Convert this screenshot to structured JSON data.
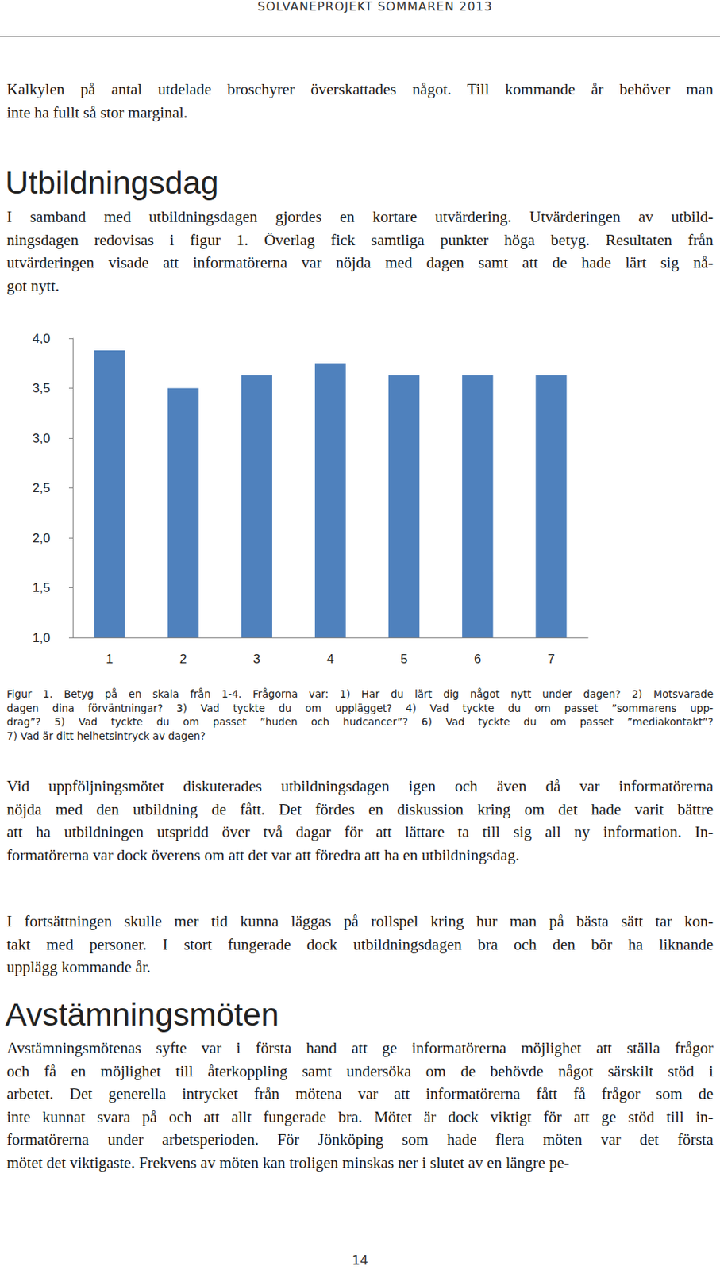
{
  "header": "SOLVANEPROJEKT SOMMAREN 2013",
  "blocks": [
    {
      "type": "paragraph",
      "lines": [
        "Kalkylen på antal utdelade broschyrer överskattades något. Till kommande år behöver man",
        "inte ha fullt så stor marginal."
      ]
    },
    {
      "type": "heading",
      "text": "Utbildningsdag"
    },
    {
      "type": "paragraph",
      "lines": [
        "I samband med utbildningsdagen gjordes en kortare utvärdering. Utvärderingen av utbild-",
        "ningsdagen redovisas i figur 1. Överlag fick samtliga punkter höga betyg. Resultaten från",
        "utvärderingen visade att informatörerna var nöjda med dagen samt att de hade lärt sig nå-",
        "got nytt."
      ]
    },
    {
      "type": "caption",
      "lines": [
        "Figur 1. Betyg på en skala från 1-4. Frågorna var: 1) Har du lärt dig något nytt under dagen? 2) Motsvarade",
        "dagen dina förväntningar? 3) Vad tyckte du om upplägget? 4) Vad tyckte du om passet ”sommarens upp-",
        "drag”? 5) Vad tyckte du om passet ”huden och hudcancer”? 6) Vad tyckte du om passet ”mediakontakt”?",
        "7) Vad är ditt helhetsintryck av dagen?"
      ]
    },
    {
      "type": "paragraph",
      "lines": [
        "Vid uppföljningsmötet diskuterades utbildningsdagen igen och även då var informatörerna",
        "nöjda med den utbildning de fått. Det fördes en diskussion kring om det hade varit bättre",
        "att ha utbildningen utspridd över två dagar för att lättare ta till sig all ny information. In-",
        "formatörerna var dock överens om att det var att föredra att ha en utbildningsdag."
      ]
    },
    {
      "type": "paragraph",
      "lines": [
        "I fortsättningen skulle mer tid kunna läggas på rollspel kring hur man på bästa sätt tar kon-",
        "takt med personer. I stort fungerade dock utbildningsdagen bra och den bör ha liknande",
        "upplägg kommande år."
      ]
    },
    {
      "type": "heading",
      "text": "Avstämningsmöten"
    },
    {
      "type": "paragraph",
      "lines": [
        "Avstämningsmötenas syfte var i första hand att ge informatörerna möjlighet att ställa frågor",
        "och få en möjlighet till återkoppling samt undersöka om de behövde något särskilt stöd i",
        "arbetet. Det generella intrycket från mötena var att informatörerna fått få frågor som de",
        "inte kunnat svara på och att allt fungerade bra. Mötet är dock viktigt för att ge stöd till in-",
        "formatörerna under arbetsperioden. För Jönköping som hade flera möten var det första",
        "mötet det viktigaste. Frekvens av möten kan troligen minskas ner i slutet av en längre pe-"
      ]
    }
  ],
  "chart_data": {
    "type": "bar",
    "categories": [
      "1",
      "2",
      "3",
      "4",
      "5",
      "6",
      "7"
    ],
    "values": [
      3.88,
      3.5,
      3.63,
      3.75,
      3.63,
      3.63,
      3.63
    ],
    "color": "#4f81bd",
    "ylim": [
      1,
      4
    ],
    "yticks": [
      {
        "value": 1,
        "label": "1,0"
      },
      {
        "value": 1.5,
        "label": "1,5"
      },
      {
        "value": 2,
        "label": "2,0"
      },
      {
        "value": 2.5,
        "label": "2,5"
      },
      {
        "value": 3,
        "label": "3,0"
      },
      {
        "value": 3.5,
        "label": "3,5"
      },
      {
        "value": 4,
        "label": "4,0"
      }
    ],
    "grid": false
  },
  "page_number": "14"
}
